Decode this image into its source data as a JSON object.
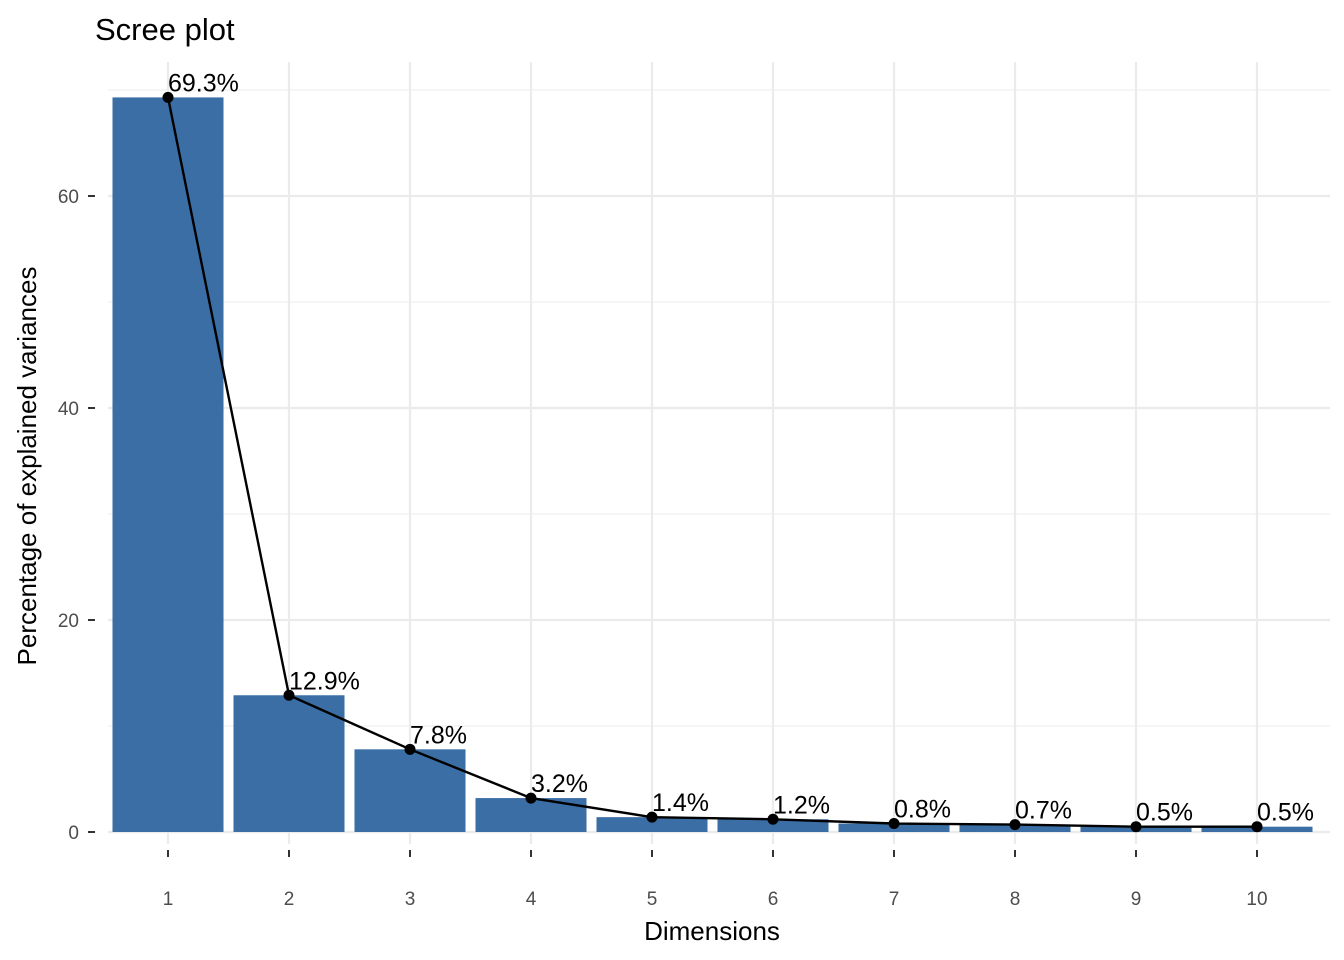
{
  "chart_data": {
    "type": "bar",
    "title": "Scree plot",
    "xlabel": "Dimensions",
    "ylabel": "Percentage of explained variances",
    "categories": [
      "1",
      "2",
      "3",
      "4",
      "5",
      "6",
      "7",
      "8",
      "9",
      "10"
    ],
    "values": [
      69.3,
      12.9,
      7.8,
      3.2,
      1.4,
      1.2,
      0.8,
      0.7,
      0.5,
      0.5
    ],
    "data_labels": [
      "69.3%",
      "12.9%",
      "7.8%",
      "3.2%",
      "1.4%",
      "1.2%",
      "0.8%",
      "0.7%",
      "0.5%",
      "0.5%"
    ],
    "overlay_line": true,
    "y_ticks": [
      0,
      20,
      40,
      60
    ],
    "y_tick_labels": [
      "0",
      "20",
      "40",
      "60"
    ],
    "ylim": [
      0,
      72.8
    ],
    "grid": true,
    "legend": "none",
    "colors": {
      "bar": "#3a6ea5",
      "line": "#000000",
      "point": "#000000"
    }
  }
}
